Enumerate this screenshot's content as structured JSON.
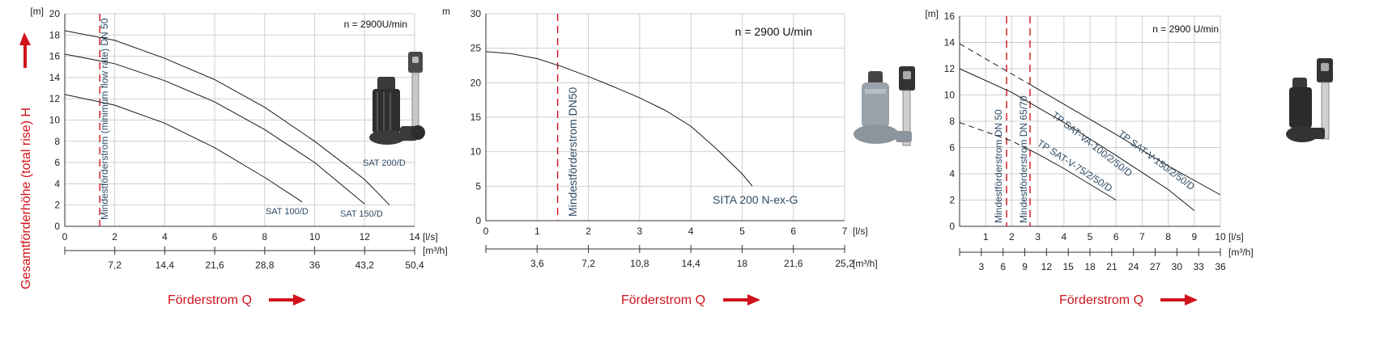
{
  "y_axis_title": "Gesamtförderhöhe (total rise) H",
  "colors": {
    "accent_red": "#d0121b",
    "curve": "#1a1a1a",
    "grid": "#cfcfcf",
    "series_label": "#2e4a63"
  },
  "chart_data": [
    {
      "type": "line",
      "x_unit": "[l/s]",
      "x2_unit": "[m³/h]",
      "y_unit": "[m]",
      "xlim": [
        0,
        14
      ],
      "ylim": [
        0,
        20
      ],
      "x_ticks": [
        "0",
        "2",
        "4",
        "6",
        "8",
        "10",
        "12",
        "14"
      ],
      "x2_ticks": [
        "7,2",
        "14,4",
        "21,6",
        "28,8",
        "36",
        "43,2",
        "50,4"
      ],
      "y_ticks": [
        "0",
        "2",
        "4",
        "6",
        "8",
        "10",
        "12",
        "14",
        "16",
        "18",
        "20"
      ],
      "speed_note": "n = 2900U/min",
      "min_flow_line": {
        "x": 1.4,
        "label": "Mindestförderstrom (minimum flow rate) DN 50"
      },
      "series": [
        {
          "name": "SAT 200/D",
          "x": [
            0,
            2,
            4,
            6,
            8,
            10,
            12,
            13
          ],
          "y": [
            18.4,
            17.5,
            15.8,
            13.8,
            11.2,
            8.0,
            4.4,
            2.0
          ]
        },
        {
          "name": "SAT 150/D",
          "x": [
            0,
            2,
            4,
            6,
            8,
            10,
            12
          ],
          "y": [
            16.2,
            15.3,
            13.7,
            11.7,
            9.1,
            6.0,
            2.1
          ]
        },
        {
          "name": "SAT 100/D",
          "x": [
            0,
            2,
            4,
            6,
            8,
            9.5
          ],
          "y": [
            12.4,
            11.4,
            9.7,
            7.4,
            4.6,
            2.3
          ]
        }
      ],
      "x_axis_caption": "Förderstrom Q"
    },
    {
      "type": "line",
      "x_unit": "[l/s]",
      "x2_unit": "[m³/h]",
      "y_unit": "m",
      "xlim": [
        0,
        7
      ],
      "ylim": [
        0,
        30
      ],
      "x_ticks": [
        "0",
        "1",
        "2",
        "3",
        "4",
        "5",
        "6",
        "7"
      ],
      "x2_ticks": [
        "3,6",
        "7,2",
        "10,8",
        "14,4",
        "18",
        "21,6",
        "25,2"
      ],
      "y_ticks": [
        "0",
        "5",
        "10",
        "15",
        "20",
        "25",
        "30"
      ],
      "speed_note": "n = 2900 U/min",
      "min_flow_line": {
        "x": 1.4,
        "label": "Mindestförderstrom DN50"
      },
      "series": [
        {
          "name": "SITA 200 N-ex-G",
          "x": [
            0,
            0.5,
            1,
            1.5,
            2,
            2.5,
            3,
            3.5,
            4,
            4.5,
            5,
            5.2
          ],
          "y": [
            24.5,
            24.2,
            23.5,
            22.3,
            20.9,
            19.4,
            17.8,
            16.0,
            13.7,
            10.4,
            6.8,
            5.0
          ]
        }
      ],
      "x_axis_caption": "Förderstrom Q"
    },
    {
      "type": "line",
      "x_unit": "[l/s]",
      "x2_unit": "[m³/h]",
      "y_unit": "[m]",
      "xlim": [
        0,
        10
      ],
      "ylim": [
        0,
        16
      ],
      "x_ticks": [
        "1",
        "2",
        "3",
        "4",
        "5",
        "6",
        "7",
        "8",
        "9",
        "10"
      ],
      "x2_ticks": [
        "3",
        "6",
        "9",
        "12",
        "15",
        "18",
        "21",
        "24",
        "27",
        "30",
        "33",
        "36"
      ],
      "y_ticks": [
        "0",
        "2",
        "4",
        "6",
        "8",
        "10",
        "12",
        "14",
        "16"
      ],
      "speed_note": "n = 2900 U/min",
      "min_flow_lines": [
        {
          "x": 1.8,
          "label": "Mindestförderstrom DN 50"
        },
        {
          "x": 2.7,
          "label": "Mindestförderstrom DN 65/70"
        }
      ],
      "series": [
        {
          "name": "TP SAT-V-150/2/50/D",
          "x": [
            0,
            2,
            4,
            6,
            8,
            10
          ],
          "y": [
            13.9,
            11.6,
            9.3,
            7.0,
            4.6,
            2.4
          ],
          "dashed_until": 2.6
        },
        {
          "name": "TP SAT-VA-100/2/50/D",
          "x": [
            0,
            2,
            4,
            6,
            8,
            9
          ],
          "y": [
            12.0,
            10.2,
            7.9,
            5.4,
            2.8,
            1.2
          ],
          "dashed_until": 0
        },
        {
          "name": "TP SAT-V-75/2/50/D",
          "x": [
            0,
            2,
            3,
            4,
            5,
            6
          ],
          "y": [
            7.9,
            6.5,
            5.5,
            4.4,
            3.2,
            2.0
          ],
          "dashed_until": 2.6
        }
      ],
      "x_axis_caption": "Förderstrom Q"
    }
  ],
  "pump_icons": [
    "pump-sat-d",
    "pump-sita-200",
    "pump-tp-sat-v"
  ]
}
